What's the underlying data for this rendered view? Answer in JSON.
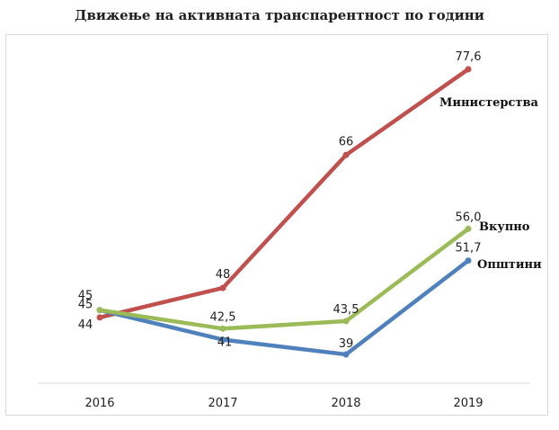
{
  "chart_data": {
    "type": "line",
    "title": "Движење на активната транспарентност по години",
    "categories": [
      "2016",
      "2017",
      "2018",
      "2019"
    ],
    "series": [
      {
        "name": "Министерства",
        "values": [
          44,
          48,
          66,
          77.6
        ],
        "labels": [
          "44",
          "48",
          "66",
          "77,6"
        ],
        "color": "#c0504d"
      },
      {
        "name": "Вкупно",
        "values": [
          45,
          42.5,
          43.5,
          56.0
        ],
        "labels": [
          "45",
          "42,5",
          "43,5",
          "56,0"
        ],
        "color": "#9bbb59"
      },
      {
        "name": "Општини",
        "values": [
          45,
          41,
          39,
          51.7
        ],
        "labels": [
          "45",
          "41",
          "39",
          "51,7"
        ],
        "color": "#4f81bd"
      }
    ],
    "grid": false,
    "legend": "series names shown at line ends"
  }
}
